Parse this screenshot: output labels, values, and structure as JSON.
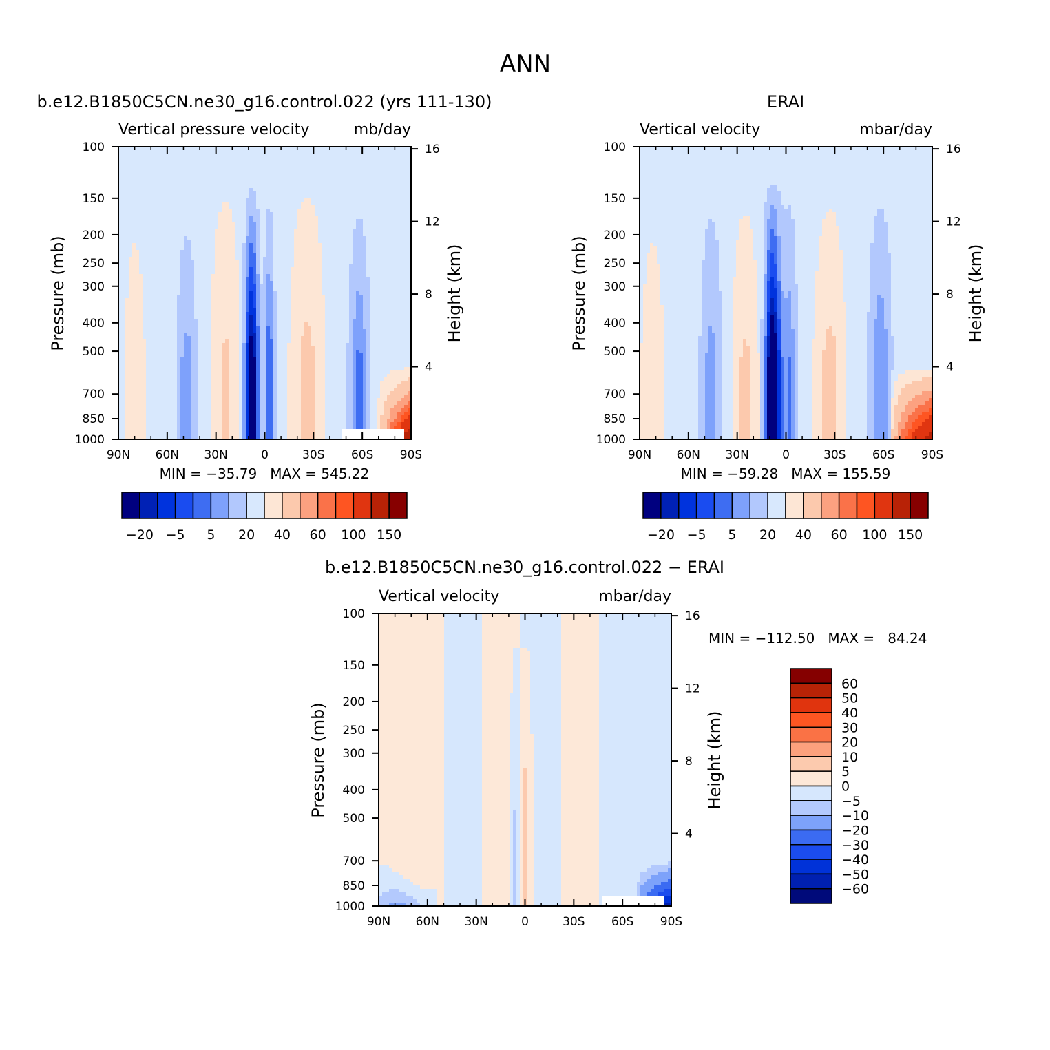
{
  "figure": {
    "title": "ANN",
    "colors": {
      "abs_levels": [
        "#00007f",
        "#0021b5",
        "#0033dd",
        "#1a4cf0",
        "#3e6df2",
        "#7ea1fb",
        "#b2c8fd",
        "#d8e8fd",
        "#fde6d5",
        "#fcc9ad",
        "#fca180",
        "#fa7249",
        "#fe5522",
        "#e03510",
        "#b82206",
        "#870000"
      ],
      "diff_levels": [
        "#000a7a",
        "#0020b0",
        "#0032d8",
        "#1b4cee",
        "#3b6bf2",
        "#7da2fa",
        "#b3c9fd",
        "#d6e7fd",
        "#fde8d8",
        "#fccaae",
        "#fca17d",
        "#fa7245",
        "#fe5622",
        "#e0340e",
        "#b72306",
        "#850000"
      ]
    }
  },
  "chart_data": [
    {
      "type": "heatmap",
      "title": "b.e12.B1850C5CN.ne30_g16.control.022 (yrs 111-130)",
      "left_label": "Vertical pressure velocity",
      "right_label": "mb/day",
      "ylabel": "Pressure (mb)",
      "ylabel_right": "Height (km)",
      "x_ticks": [
        "90N",
        "60N",
        "30N",
        "0",
        "30S",
        "60S",
        "90S"
      ],
      "y_ticks": [
        "100",
        "150",
        "200",
        "250",
        "300",
        "400",
        "500",
        "700",
        "850",
        "1000"
      ],
      "y_right_ticks": [
        "4",
        "8",
        "12",
        "16"
      ],
      "stats": "MIN = −35.79   MAX = 545.22",
      "colorbar_labels": [
        "−20",
        "−5",
        "5",
        "20",
        "40",
        "60",
        "100",
        "150"
      ],
      "ylim": [
        1000,
        100
      ],
      "xlim": [
        "90N",
        "90S"
      ]
    },
    {
      "type": "heatmap",
      "title": "ERAI",
      "left_label": "Vertical velocity",
      "right_label": "mbar/day",
      "ylabel": "Pressure (mb)",
      "ylabel_right": "Height (km)",
      "x_ticks": [
        "90N",
        "60N",
        "30N",
        "0",
        "30S",
        "60S",
        "90S"
      ],
      "y_ticks": [
        "100",
        "150",
        "200",
        "250",
        "300",
        "400",
        "500",
        "700",
        "850",
        "1000"
      ],
      "y_right_ticks": [
        "4",
        "8",
        "12",
        "16"
      ],
      "stats": "MIN = −59.28   MAX = 155.59",
      "colorbar_labels": [
        "−20",
        "−5",
        "5",
        "20",
        "40",
        "60",
        "100",
        "150"
      ],
      "ylim": [
        1000,
        100
      ],
      "xlim": [
        "90N",
        "90S"
      ]
    },
    {
      "type": "heatmap",
      "title": "b.e12.B1850C5CN.ne30_g16.control.022 − ERAI",
      "left_label": "Vertical velocity",
      "right_label": "mbar/day",
      "ylabel": "Pressure (mb)",
      "ylabel_right": "Height (km)",
      "x_ticks": [
        "90N",
        "60N",
        "30N",
        "0",
        "30S",
        "60S",
        "90S"
      ],
      "y_ticks": [
        "100",
        "150",
        "200",
        "250",
        "300",
        "400",
        "500",
        "700",
        "850",
        "1000"
      ],
      "y_right_ticks": [
        "4",
        "8",
        "12",
        "16"
      ],
      "stats": "MIN = −112.50   MAX =   84.24",
      "colorbar_labels": [
        "60",
        "50",
        "40",
        "30",
        "20",
        "10",
        "5",
        "0",
        "−5",
        "−10",
        "−20",
        "−30",
        "−40",
        "−50",
        "−60"
      ],
      "ylim": [
        1000,
        100
      ],
      "xlim": [
        "90N",
        "90S"
      ]
    }
  ]
}
